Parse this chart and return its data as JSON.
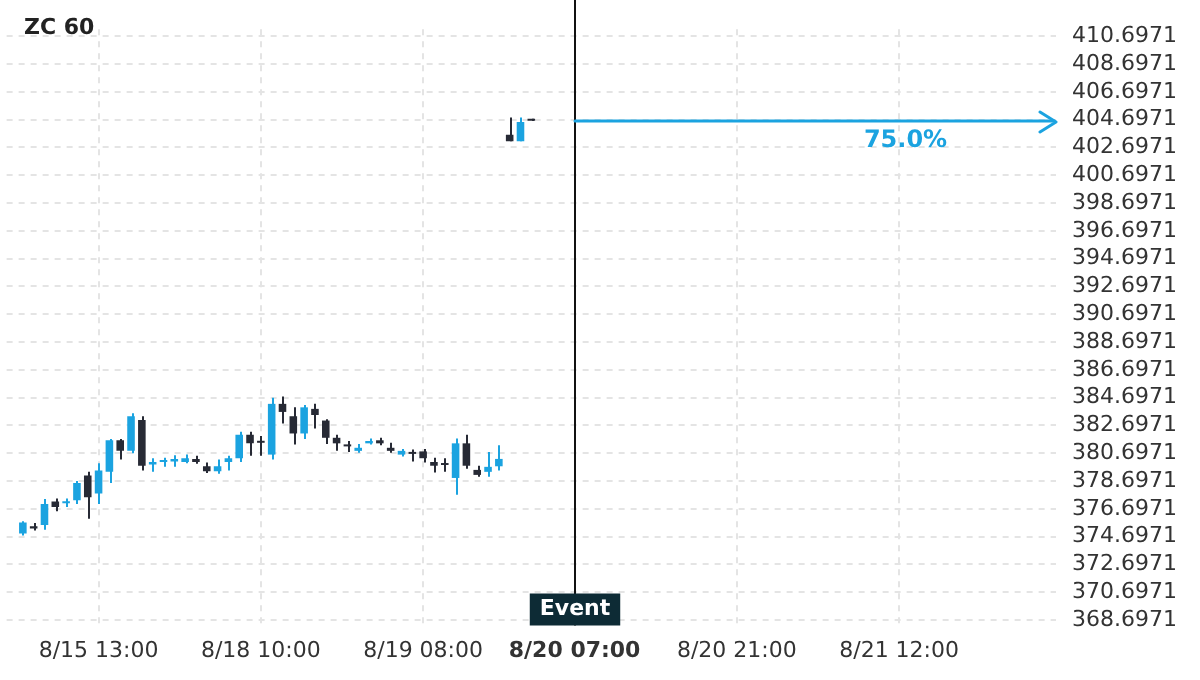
{
  "chart_data": {
    "type": "candlestick",
    "title": "ZC 60",
    "categories": [
      null,
      null,
      null,
      null,
      null,
      null,
      null,
      null,
      "8/15 13:00",
      null,
      null,
      null,
      null,
      null,
      null,
      null,
      null,
      null,
      null,
      null,
      null,
      null,
      null,
      "8/18 10:00",
      null,
      null,
      null,
      null,
      null,
      null,
      null,
      null,
      null,
      null,
      null,
      null,
      null,
      null,
      "8/19 08:00",
      null,
      null,
      null,
      null,
      null,
      null,
      null,
      null,
      null,
      null,
      null,
      null,
      null,
      "8/20 07:00",
      null,
      null,
      null,
      null,
      null,
      null,
      null,
      null,
      null,
      null,
      null,
      null,
      null,
      null,
      "8/20 21:00",
      null,
      null,
      null,
      null,
      null,
      null,
      null,
      null,
      null,
      null,
      null,
      null,
      null,
      null,
      "8/21 12:00",
      null,
      null,
      null,
      null,
      null,
      null,
      null,
      null,
      null,
      null,
      null,
      null,
      null,
      null
    ],
    "ohlc": [
      null,
      [
        374.92,
        375.81,
        374.79,
        375.72
      ],
      [
        375.45,
        375.68,
        375.14,
        375.28
      ],
      [
        375.54,
        377.41,
        375.19,
        377.05
      ],
      [
        377.23,
        377.45,
        376.52,
        376.83
      ],
      [
        377.1,
        377.45,
        376.83,
        377.23
      ],
      [
        377.32,
        378.7,
        377.05,
        378.56
      ],
      [
        379.1,
        379.36,
        375.99,
        377.54
      ],
      [
        377.81,
        379.98,
        377.05,
        379.45
      ],
      [
        379.36,
        381.72,
        378.56,
        381.63
      ],
      [
        381.63,
        381.72,
        380.25,
        380.87
      ],
      [
        380.87,
        383.58,
        380.69,
        383.36
      ],
      [
        383.09,
        383.36,
        379.45,
        379.8
      ],
      [
        379.89,
        380.34,
        379.36,
        380.07
      ],
      [
        380.07,
        380.38,
        379.72,
        380.16
      ],
      [
        380.11,
        380.56,
        379.72,
        380.29
      ],
      [
        380.07,
        380.6,
        379.98,
        380.34
      ],
      [
        380.29,
        380.51,
        379.94,
        380.07
      ],
      [
        379.76,
        380.03,
        379.27,
        379.4
      ],
      [
        379.4,
        380.25,
        379.23,
        379.76
      ],
      [
        380.07,
        380.51,
        379.45,
        380.34
      ],
      [
        380.34,
        382.25,
        380.07,
        382.03
      ],
      [
        382.03,
        382.25,
        380.51,
        381.41
      ],
      [
        381.54,
        381.94,
        380.51,
        381.45
      ],
      [
        380.6,
        384.69,
        380.25,
        384.25
      ],
      [
        384.25,
        384.78,
        382.83,
        383.67
      ],
      [
        383.36,
        384.0,
        381.32,
        382.12
      ],
      [
        382.12,
        384.16,
        381.72,
        384.0
      ],
      [
        383.89,
        384.25,
        382.47,
        383.45
      ],
      [
        383.05,
        383.14,
        381.36,
        381.81
      ],
      [
        381.81,
        382.03,
        380.87,
        381.41
      ],
      [
        381.27,
        381.58,
        380.78,
        381.19
      ],
      [
        380.87,
        381.36,
        380.74,
        381.09
      ],
      [
        381.41,
        381.76,
        381.32,
        381.58
      ],
      [
        381.63,
        381.81,
        381.27,
        381.41
      ],
      [
        381.09,
        381.45,
        380.74,
        380.87
      ],
      [
        380.6,
        381.0,
        380.47,
        380.87
      ],
      [
        380.78,
        380.96,
        380.11,
        380.65
      ],
      [
        380.83,
        381.0,
        380.03,
        380.34
      ],
      [
        380.07,
        380.38,
        379.32,
        379.8
      ],
      [
        379.98,
        380.34,
        379.36,
        379.85
      ],
      [
        378.92,
        381.76,
        377.72,
        381.41
      ],
      [
        381.41,
        382.03,
        379.58,
        379.8
      ],
      [
        379.5,
        379.8,
        379.0,
        379.14
      ],
      [
        379.36,
        380.78,
        379.0,
        379.72
      ],
      [
        379.76,
        381.27,
        379.45,
        380.29
      ],
      [
        403.6,
        404.84,
        403.14,
        403.14
      ],
      [
        403.14,
        404.84,
        403.14,
        404.52
      ],
      [
        404.7,
        404.75,
        404.6,
        404.62
      ],
      null,
      null,
      null,
      null,
      null,
      null,
      null,
      null,
      null,
      null,
      null,
      null,
      null,
      null,
      null,
      null,
      null,
      null,
      null,
      null,
      null,
      null,
      null,
      null,
      null,
      null,
      null,
      null,
      null,
      null,
      null,
      null,
      null,
      null,
      null,
      null,
      null,
      null,
      null,
      null,
      null,
      null,
      null,
      null,
      null,
      null,
      null,
      null
    ],
    "colors": [
      null,
      "#1ba3e0",
      "#272a35",
      "#1ba3e0",
      "#272a35",
      "#1ba3e0",
      "#1ba3e0",
      "#272a35",
      "#1ba3e0",
      "#1ba3e0",
      "#272a35",
      "#1ba3e0",
      "#272a35",
      "#1ba3e0",
      "#1ba3e0",
      "#1ba3e0",
      "#1ba3e0",
      "#272a35",
      "#272a35",
      "#1ba3e0",
      "#1ba3e0",
      "#1ba3e0",
      "#272a35",
      "#272a35",
      "#1ba3e0",
      "#272a35",
      "#272a35",
      "#1ba3e0",
      "#272a35",
      "#272a35",
      "#272a35",
      "#272a35",
      "#1ba3e0",
      "#1ba3e0",
      "#272a35",
      "#272a35",
      "#1ba3e0",
      "#272a35",
      "#272a35",
      "#272a35",
      "#272a35",
      "#1ba3e0",
      "#272a35",
      "#272a35",
      "#1ba3e0",
      "#1ba3e0",
      "#272a35",
      "#1ba3e0",
      "#272a35",
      null,
      null,
      null,
      null,
      null,
      null,
      null,
      null,
      null,
      null,
      null,
      null,
      null,
      null,
      null,
      null,
      null,
      null,
      null,
      null,
      null,
      null,
      null,
      null,
      null,
      null,
      null,
      null,
      null,
      null,
      null,
      null,
      null,
      null,
      null,
      null,
      null,
      null,
      null,
      null,
      null,
      null,
      null,
      null,
      null,
      null,
      null,
      null
    ],
    "ylim": [
      368.3,
      411.2
    ],
    "yticks": [
      368.6971,
      370.6971,
      372.6971,
      374.6971,
      376.6971,
      378.6971,
      380.6971,
      382.6971,
      384.6971,
      386.6971,
      388.6971,
      390.6971,
      392.6971,
      394.6971,
      396.6971,
      398.6971,
      400.6971,
      402.6971,
      404.6971,
      406.6971,
      408.6971,
      410.6971
    ],
    "grid": true,
    "ref_lines": [
      {
        "axis": "x",
        "value": "8/20 07:00",
        "label": "Event",
        "color": "#111111"
      },
      {
        "axis": "y",
        "value": 404.6971,
        "color": "#1ba3e0"
      }
    ],
    "annotations": [
      "75.0%"
    ]
  }
}
